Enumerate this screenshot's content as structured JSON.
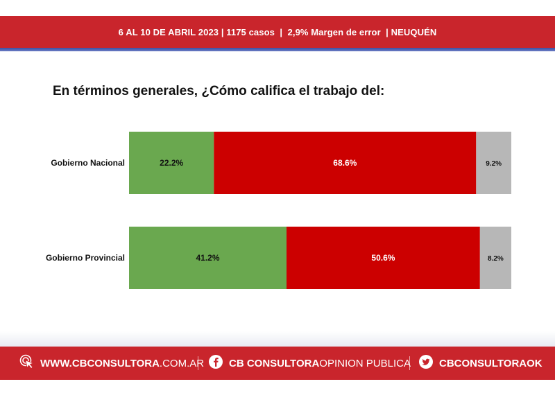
{
  "header": {
    "text": "6 AL 10 DE ABRIL 2023 | 1175 casos  |  2,9% Margen de error  | NEUQUÉN"
  },
  "chart_data": {
    "type": "bar",
    "orientation": "horizontal",
    "stacked": true,
    "title": "En términos generales, ¿Cómo califica el trabajo del:",
    "categories": [
      "Gobierno Nacional",
      "Gobierno Provincial"
    ],
    "series": [
      {
        "values": [
          22.2,
          41.2
        ],
        "labels": [
          "22.2%",
          "41.2%"
        ],
        "color": "#6aa84f"
      },
      {
        "values": [
          68.6,
          50.6
        ],
        "labels": [
          "68.6%",
          "50.6%"
        ],
        "color": "#cc0000"
      },
      {
        "values": [
          9.2,
          8.2
        ],
        "labels": [
          "9.2%",
          "8.2%"
        ],
        "color": "#b7b7b7"
      }
    ],
    "xlim": [
      0,
      100
    ],
    "grid": false,
    "legend": "none"
  },
  "footer": {
    "web_bold": "WWW.CBCONSULTORA",
    "web_light": ".COM.AR",
    "fb_bold": "CB CONSULTORA",
    "fb_light": " OPINION PUBLICA",
    "tw_bold": "CBCONSULTORAOK",
    "icons": [
      "cursor-click-icon",
      "facebook-icon",
      "twitter-icon"
    ]
  }
}
